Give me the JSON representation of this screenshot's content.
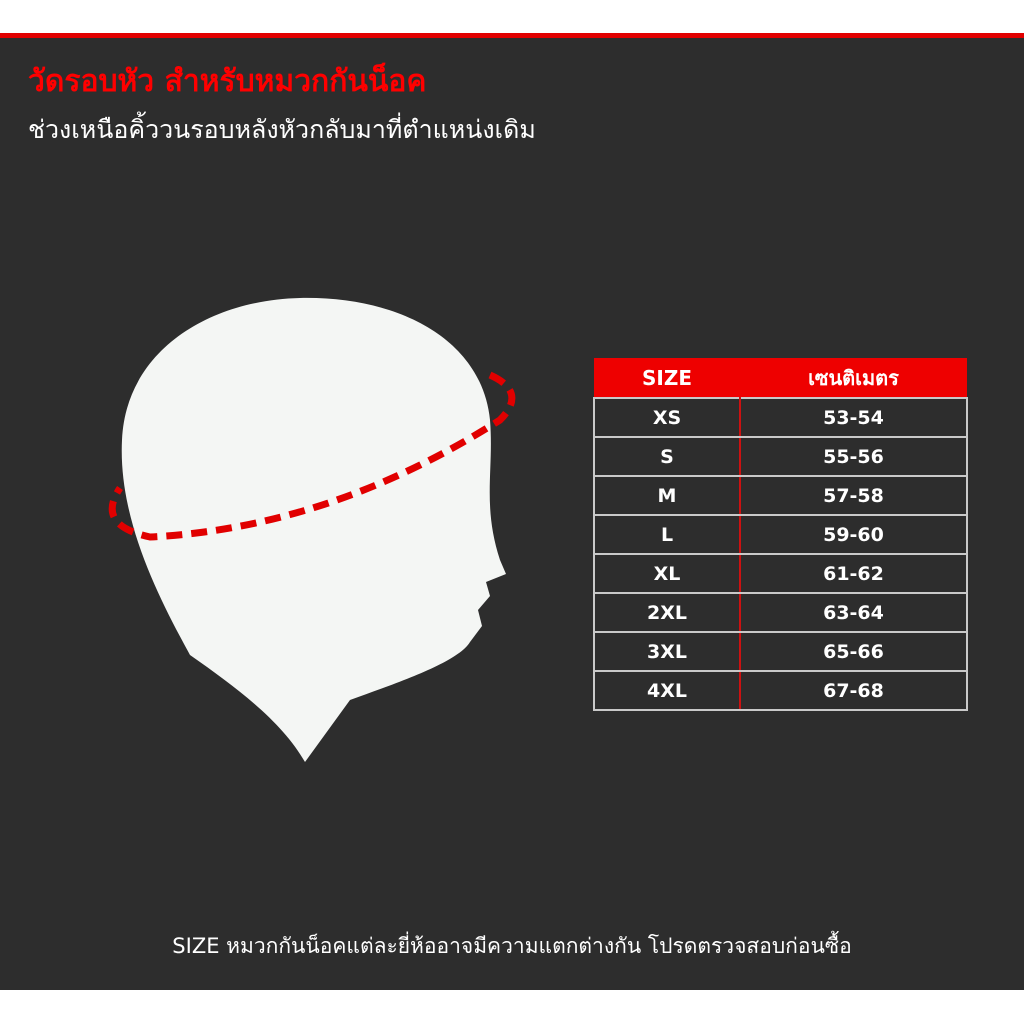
{
  "title": "วัดรอบหัว สำหรับหมวกกันน็อค",
  "subtitle": "ช่วงเหนือคิ้ววนรอบหลังหัวกลับมาที่ตำแหน่งเดิม",
  "table": {
    "headers": [
      "SIZE",
      "เซนติเมตร"
    ],
    "rows": [
      {
        "size": "XS",
        "cm": "53-54"
      },
      {
        "size": "S",
        "cm": "55-56"
      },
      {
        "size": "M",
        "cm": "57-58"
      },
      {
        "size": "L",
        "cm": "59-60"
      },
      {
        "size": "XL",
        "cm": "61-62"
      },
      {
        "size": "2XL",
        "cm": "63-64"
      },
      {
        "size": "3XL",
        "cm": "65-66"
      },
      {
        "size": "4XL",
        "cm": "67-68"
      }
    ]
  },
  "footer": "SIZE หมวกกันน็อคแต่ละยี่ห้ออาจมีความแตกต่างกัน โปรดตรวจสอบก่อนซื้อ",
  "colors": {
    "accent": "#ff0000",
    "background": "#2d2d2d",
    "head": "#f4f6f4"
  },
  "icons": [
    "head-silhouette-icon",
    "measurement-dashed-line"
  ]
}
